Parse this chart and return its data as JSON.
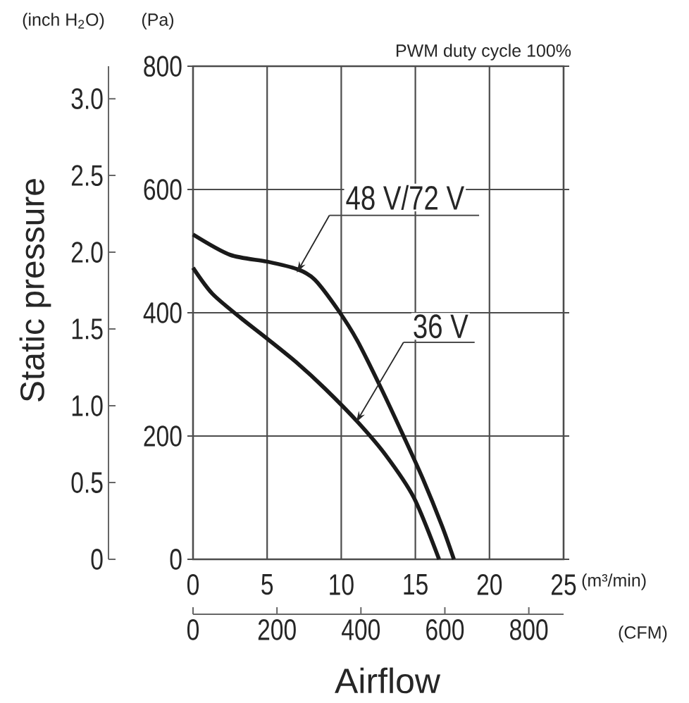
{
  "chart_data": {
    "type": "line",
    "xlabel": "Airflow",
    "y2label": "Static pressure",
    "annotations": [
      "PWM duty cycle 100%",
      "(inch H$_{2}$O)",
      "(Pa)",
      "(m³/min)",
      "(CFM)"
    ],
    "xlim": [
      0,
      25
    ],
    "xticks": [
      0,
      5,
      10,
      15,
      20,
      25
    ],
    "ylim": [
      0,
      800
    ],
    "yticks": [
      0,
      200,
      400,
      600,
      800
    ],
    "y2lim": [
      0,
      3.2117
    ],
    "y2ticks": [
      0,
      0.5,
      {
        "value": 1,
        "label": "1.0"
      },
      1.5,
      {
        "value": 2,
        "label": "2.0"
      },
      2.5,
      {
        "value": 3,
        "label": "3.0"
      }
    ],
    "x2lim": [
      0,
      882.87
    ],
    "x2ticks": [
      0,
      200,
      400,
      600,
      800
    ],
    "grid": true,
    "series": [
      {
        "name": "48 V/72 V",
        "color": "#1a1a1a",
        "x": [
          0,
          2.5,
          5,
          7,
          8.2,
          9.8,
          11.1,
          12.7,
          14.2,
          15.5,
          16.8,
          17.6
        ],
        "values": [
          527,
          494,
          483,
          471,
          454,
          404,
          354,
          277,
          200,
          131,
          54,
          0
        ]
      },
      {
        "name": "36 V",
        "color": "#1a1a1a",
        "x": [
          0,
          1.3,
          3.2,
          5,
          7,
          8.9,
          11.1,
          13,
          14.9,
          16.6
        ],
        "values": [
          473,
          431,
          392,
          358,
          319,
          277,
          223,
          169,
          100,
          0
        ]
      }
    ]
  }
}
